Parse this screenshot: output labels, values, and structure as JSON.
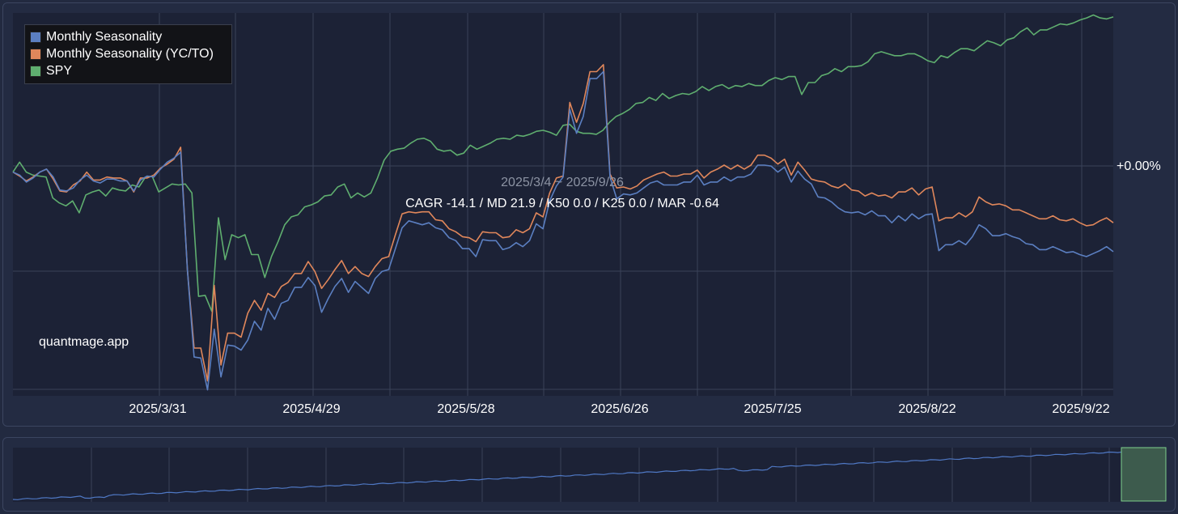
{
  "legend": {
    "items": [
      {
        "label": "Monthly Seasonality",
        "color": "#5b7fc1"
      },
      {
        "label": "Monthly Seasonality (YC/TO)",
        "color": "#e0875b"
      },
      {
        "label": "SPY",
        "color": "#5fae6f"
      }
    ]
  },
  "watermark": "quantmage.app",
  "range_label": "2025/3/4 ~ 2025/9/26",
  "stats_label": "CAGR -14.1 / MD 21.9 / K50 0.0 / K25 0.0 / MAR -0.64",
  "y_zero_label": "+0.00%",
  "x_ticks": [
    "2025/3/31",
    "2025/4/29",
    "2025/5/28",
    "2025/6/26",
    "2025/7/25",
    "2025/8/22",
    "2025/9/22"
  ],
  "colors": {
    "background": "#1c2236",
    "grid": "#3a4258",
    "navigator_line": "#4f78c4",
    "navigator_selection": "#3d5b4d"
  },
  "chart_data": {
    "type": "line",
    "x_range": [
      "2025/3/4",
      "2025/9/26"
    ],
    "series": [
      {
        "name": "Monthly Seasonality",
        "color": "#5b7fc1",
        "values": [
          0.0,
          -0.3,
          -1.0,
          -0.6,
          0.0,
          0.3,
          -0.5,
          -1.8,
          -1.9,
          -1.6,
          -0.8,
          -0.3,
          -0.9,
          -1.1,
          -0.7,
          -0.7,
          -0.9,
          -0.9,
          -1.9,
          -0.8,
          -0.4,
          -0.5,
          0.3,
          1.0,
          1.4,
          2.0,
          -9.8,
          -18.6,
          -18.7,
          -21.9,
          -15.8,
          -20.6,
          -17.4,
          -17.5,
          -17.9,
          -16.9,
          -15.0,
          -15.9,
          -13.7,
          -14.8,
          -13.2,
          -12.9,
          -11.6,
          -11.6,
          -10.6,
          -11.4,
          -14.1,
          -12.7,
          -11.5,
          -10.7,
          -12.1,
          -11.0,
          -11.6,
          -12.2,
          -10.7,
          -10.0,
          -9.8,
          -7.7,
          -5.6,
          -4.9,
          -5.1,
          -5.3,
          -5.1,
          -5.6,
          -5.8,
          -6.6,
          -6.9,
          -7.7,
          -7.7,
          -8.5,
          -6.8,
          -6.9,
          -6.9,
          -7.8,
          -7.6,
          -7.1,
          -7.5,
          -6.9,
          -5.2,
          -5.7,
          -2.9,
          -1.4,
          -0.5,
          6.3,
          3.9,
          5.6,
          9.4,
          9.4,
          10.1,
          -0.5,
          -2.7,
          -2.2,
          -2.3,
          -2.1,
          -1.6,
          -1.1,
          -0.9,
          -1.3,
          -1.3,
          -1.3,
          -1.0,
          -1.0,
          -0.3,
          -1.3,
          -1.0,
          -1.0,
          -0.5,
          -0.9,
          -0.5,
          -0.5,
          -0.2,
          0.7,
          0.7,
          0.6,
          0.0,
          0.5,
          -1.0,
          0.1,
          -0.7,
          -1.2,
          -2.5,
          -2.6,
          -3.0,
          -3.6,
          -4.0,
          -4.1,
          -4.0,
          -4.3,
          -3.9,
          -4.4,
          -4.4,
          -5.1,
          -4.4,
          -4.9,
          -4.2,
          -4.7,
          -4.3,
          -4.2,
          -7.9,
          -7.3,
          -7.3,
          -6.9,
          -7.3,
          -6.5,
          -5.3,
          -5.7,
          -6.4,
          -6.4,
          -6.2,
          -6.5,
          -6.7,
          -7.2,
          -7.3,
          -7.8,
          -7.8,
          -7.5,
          -7.8,
          -8.1,
          -8.0,
          -8.3,
          -8.5,
          -8.2,
          -7.9,
          -7.5,
          -8.0
        ]
      },
      {
        "name": "Monthly Seasonality (YC/TO)",
        "color": "#e0875b",
        "values": [
          0.0,
          -0.4,
          -0.9,
          -0.5,
          0.0,
          0.3,
          -0.7,
          -1.9,
          -2.0,
          -1.3,
          -0.9,
          0.0,
          -0.8,
          -0.8,
          -0.5,
          -0.6,
          -0.6,
          -0.9,
          -2.0,
          -0.6,
          -0.6,
          -0.3,
          0.4,
          0.8,
          1.3,
          2.5,
          -9.8,
          -17.7,
          -17.7,
          -21.0,
          -11.4,
          -19.4,
          -16.2,
          -16.2,
          -16.6,
          -14.2,
          -12.9,
          -13.9,
          -12.2,
          -12.6,
          -11.5,
          -11.1,
          -10.2,
          -10.2,
          -9.0,
          -10.0,
          -11.7,
          -10.8,
          -9.8,
          -8.9,
          -10.2,
          -9.5,
          -10.2,
          -10.5,
          -9.5,
          -8.7,
          -8.5,
          -6.3,
          -4.2,
          -4.0,
          -4.1,
          -4.0,
          -4.0,
          -4.8,
          -4.9,
          -5.7,
          -6.0,
          -6.5,
          -6.6,
          -7.0,
          -6.0,
          -6.1,
          -6.1,
          -6.6,
          -6.5,
          -5.8,
          -6.1,
          -5.7,
          -4.1,
          -4.5,
          -2.1,
          -0.6,
          -0.4,
          7.0,
          5.0,
          6.9,
          10.1,
          10.1,
          10.8,
          -0.2,
          -1.6,
          -1.5,
          -1.7,
          -1.4,
          -0.8,
          -0.5,
          -0.2,
          0.0,
          -0.4,
          -0.4,
          -0.2,
          -0.2,
          0.2,
          -0.6,
          0.0,
          0.3,
          0.7,
          0.3,
          0.7,
          0.3,
          0.7,
          1.7,
          1.7,
          1.4,
          0.8,
          1.3,
          -0.3,
          1.0,
          0.2,
          -0.7,
          -0.9,
          -1.0,
          -1.4,
          -1.6,
          -1.2,
          -1.8,
          -1.9,
          -2.4,
          -2.1,
          -2.4,
          -2.3,
          -2.6,
          -2.0,
          -2.0,
          -1.6,
          -2.3,
          -1.7,
          -1.5,
          -4.9,
          -4.6,
          -4.6,
          -4.1,
          -4.5,
          -4.0,
          -2.5,
          -3.0,
          -3.3,
          -3.2,
          -3.4,
          -3.8,
          -3.8,
          -4.1,
          -4.4,
          -4.7,
          -4.7,
          -4.4,
          -4.8,
          -4.9,
          -4.7,
          -5.1,
          -5.4,
          -5.3,
          -4.9,
          -4.6,
          -5.1
        ]
      },
      {
        "name": "SPY",
        "color": "#5fae6f",
        "values": [
          0.0,
          1.0,
          0.0,
          -0.3,
          -0.4,
          -0.5,
          -2.6,
          -3.1,
          -3.4,
          -2.9,
          -4.1,
          -2.3,
          -2.0,
          -1.8,
          -2.4,
          -1.6,
          -1.8,
          -1.9,
          -1.3,
          -1.5,
          -0.5,
          -0.4,
          -2.0,
          -1.6,
          -1.2,
          -1.3,
          -1.2,
          -2.1,
          -12.5,
          -12.4,
          -14.0,
          -4.6,
          -8.8,
          -6.3,
          -6.6,
          -6.3,
          -8.3,
          -8.3,
          -10.6,
          -8.5,
          -7.0,
          -5.3,
          -4.5,
          -4.3,
          -3.5,
          -3.3,
          -3.0,
          -2.4,
          -2.3,
          -1.5,
          -1.2,
          -2.6,
          -2.1,
          -2.5,
          -2.1,
          -0.6,
          1.2,
          2.1,
          2.3,
          2.4,
          2.9,
          3.3,
          3.4,
          3.1,
          2.3,
          2.1,
          2.2,
          1.7,
          1.9,
          2.7,
          2.3,
          2.6,
          2.9,
          3.3,
          3.4,
          3.3,
          3.7,
          3.6,
          3.8,
          4.1,
          4.2,
          4.0,
          3.7,
          4.7,
          4.8,
          4.1,
          3.9,
          3.9,
          3.8,
          4.2,
          5.0,
          5.6,
          5.9,
          6.3,
          6.9,
          7.0,
          7.5,
          7.2,
          7.9,
          7.4,
          7.7,
          7.9,
          7.8,
          8.1,
          8.6,
          8.2,
          8.6,
          8.8,
          8.4,
          8.7,
          8.6,
          8.9,
          8.7,
          8.7,
          9.2,
          9.5,
          9.3,
          9.6,
          9.6,
          7.8,
          9.0,
          9.0,
          9.7,
          9.9,
          10.4,
          10.1,
          10.6,
          10.6,
          10.7,
          11.1,
          11.9,
          12.1,
          11.9,
          11.7,
          11.7,
          11.9,
          11.9,
          11.6,
          11.2,
          11.0,
          11.7,
          11.5,
          12.0,
          12.4,
          12.4,
          12.2,
          12.7,
          13.2,
          13.0,
          12.7,
          13.3,
          13.5,
          14.1,
          14.5,
          13.8,
          14.3,
          14.3,
          14.6,
          14.9,
          14.8,
          15.0,
          15.3,
          15.5,
          15.8,
          15.5,
          15.4,
          15.6
        ]
      }
    ],
    "ylim": [
      -22.5,
      16.0
    ],
    "y_tick_label": "+0.00%",
    "grid": true,
    "legend_position": "top-left",
    "navigator": {
      "type": "line",
      "series": "Monthly Seasonality (full history)",
      "selection": "right-end"
    }
  }
}
